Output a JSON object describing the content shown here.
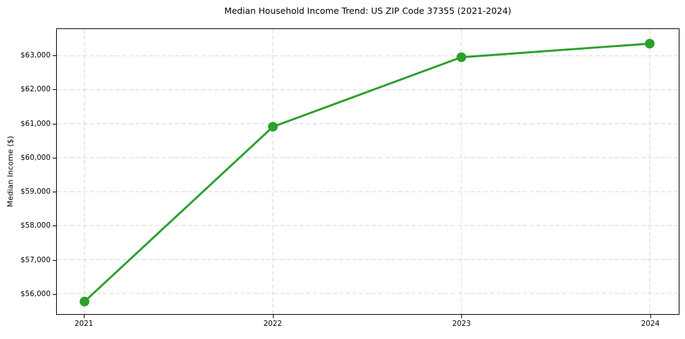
{
  "figure": {
    "background_color": "#ffffff",
    "axis_color": "#000000"
  },
  "chart_data": {
    "type": "line",
    "title": "Median Household Income Trend: US ZIP Code 37355 (2021-2024)",
    "xlabel": "",
    "ylabel": "Median Income ($)",
    "categories": [
      "2021",
      "2022",
      "2023",
      "2024"
    ],
    "x": [
      2021,
      2022,
      2023,
      2024
    ],
    "series": [
      {
        "values": [
          55760,
          60910,
          62960,
          63360
        ],
        "color": "#2ca02c",
        "marker": "circle"
      }
    ],
    "xlim": [
      2020.853,
      2024.154
    ],
    "ylim": [
      55390,
      63790
    ],
    "yticks": [
      56000,
      57000,
      58000,
      59000,
      60000,
      61000,
      62000,
      63000
    ],
    "ytick_labels": [
      "$56,000",
      "$57,000",
      "$58,000",
      "$59,000",
      "$60,000",
      "$61,000",
      "$62,000",
      "$63,000"
    ],
    "grid": true,
    "grid_style": "dashed",
    "grid_color": "#d4d4d4",
    "legend_position": "none"
  }
}
